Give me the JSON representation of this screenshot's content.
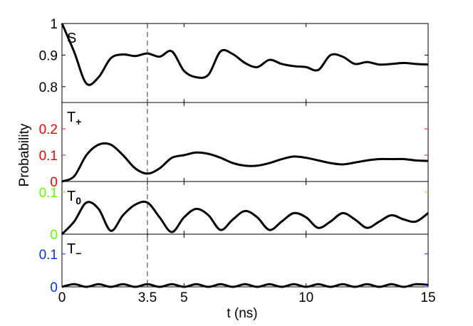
{
  "chart_data": {
    "type": "line",
    "xlabel": "t (ns)",
    "ylabel": "Probability",
    "xlim": [
      0,
      15
    ],
    "x_ticks": [
      "0",
      "3.5",
      "5",
      "10",
      "15"
    ],
    "x_tick_values": [
      0,
      3.5,
      5,
      10,
      15
    ],
    "reference_line": {
      "x": 3.5,
      "style": "dashed"
    },
    "grid": false,
    "line_color": "#000000",
    "panels": [
      {
        "id": "S",
        "label": "S",
        "label_sub": "",
        "ylim": [
          0.75,
          1.0
        ],
        "yticks": [
          "0.8",
          "0.9",
          "1"
        ],
        "ytick_values": [
          0.8,
          0.9,
          1.0
        ],
        "tick_color": "#000000",
        "x": [
          0,
          0.5,
          1,
          1.5,
          2,
          2.5,
          3,
          3.5,
          4,
          4.5,
          5,
          5.5,
          6,
          6.5,
          7,
          7.5,
          8,
          8.5,
          9,
          9.5,
          10,
          10.5,
          11,
          11.5,
          12,
          12.5,
          13,
          13.5,
          14,
          14.5,
          15
        ],
        "values": [
          1.0,
          0.91,
          0.81,
          0.83,
          0.89,
          0.902,
          0.897,
          0.905,
          0.895,
          0.912,
          0.85,
          0.83,
          0.838,
          0.912,
          0.903,
          0.875,
          0.862,
          0.885,
          0.872,
          0.865,
          0.862,
          0.853,
          0.9,
          0.895,
          0.872,
          0.878,
          0.87,
          0.872,
          0.875,
          0.872,
          0.87
        ]
      },
      {
        "id": "T_plus",
        "label": "T",
        "label_sub": "+",
        "ylim": [
          0,
          0.3
        ],
        "yticks": [
          "0",
          "0.1",
          "0.2"
        ],
        "ytick_values": [
          0,
          0.1,
          0.2
        ],
        "tick_color": "#ff0000",
        "x": [
          0,
          0.5,
          1,
          1.5,
          2,
          2.5,
          3,
          3.5,
          4,
          4.5,
          5,
          5.5,
          6,
          6.5,
          7,
          7.5,
          8,
          8.5,
          9,
          9.5,
          10,
          10.5,
          11,
          11.5,
          12,
          12.5,
          13,
          13.5,
          14,
          14.5,
          15
        ],
        "values": [
          0.0,
          0.02,
          0.1,
          0.14,
          0.14,
          0.1,
          0.05,
          0.03,
          0.05,
          0.09,
          0.1,
          0.11,
          0.105,
          0.09,
          0.07,
          0.06,
          0.06,
          0.07,
          0.085,
          0.095,
          0.09,
          0.08,
          0.07,
          0.065,
          0.072,
          0.08,
          0.085,
          0.085,
          0.085,
          0.08,
          0.078
        ]
      },
      {
        "id": "T_0",
        "label": "T",
        "label_sub": "0",
        "ylim": [
          0,
          0.125
        ],
        "yticks": [
          "0",
          "0.1"
        ],
        "ytick_values": [
          0,
          0.1
        ],
        "tick_color": "#66ff00",
        "x": [
          0,
          0.5,
          1,
          1.5,
          2,
          2.5,
          3,
          3.5,
          4,
          4.5,
          5,
          5.5,
          6,
          6.5,
          7,
          7.5,
          8,
          8.5,
          9,
          9.5,
          10,
          10.5,
          11,
          11.5,
          12,
          12.5,
          13,
          13.5,
          14,
          14.5,
          15
        ],
        "values": [
          0.0,
          0.03,
          0.075,
          0.06,
          0.008,
          0.045,
          0.07,
          0.075,
          0.04,
          0.005,
          0.04,
          0.06,
          0.045,
          0.01,
          0.035,
          0.055,
          0.04,
          0.01,
          0.03,
          0.05,
          0.04,
          0.015,
          0.03,
          0.05,
          0.035,
          0.015,
          0.03,
          0.045,
          0.035,
          0.03,
          0.05
        ]
      },
      {
        "id": "T_minus",
        "label": "T",
        "label_sub": "−",
        "ylim": [
          0,
          0.16
        ],
        "yticks": [
          "0",
          "0.1"
        ],
        "ytick_values": [
          0,
          0.1
        ],
        "tick_color": "#0033ff",
        "x": [
          0,
          0.5,
          1,
          1.5,
          2,
          2.5,
          3,
          3.5,
          4,
          4.5,
          5,
          5.5,
          6,
          6.5,
          7,
          7.5,
          8,
          8.5,
          9,
          9.5,
          10,
          10.5,
          11,
          11.5,
          12,
          12.5,
          13,
          13.5,
          14,
          14.5,
          15
        ],
        "values": [
          0.0,
          0.008,
          0.0,
          0.008,
          0.0,
          0.008,
          0.0,
          0.008,
          0.0,
          0.008,
          0.0,
          0.008,
          0.0,
          0.008,
          0.0,
          0.008,
          0.0,
          0.008,
          0.0,
          0.008,
          0.0,
          0.008,
          0.0,
          0.008,
          0.0,
          0.008,
          0.0,
          0.008,
          0.0,
          0.008,
          0.006
        ]
      }
    ]
  }
}
